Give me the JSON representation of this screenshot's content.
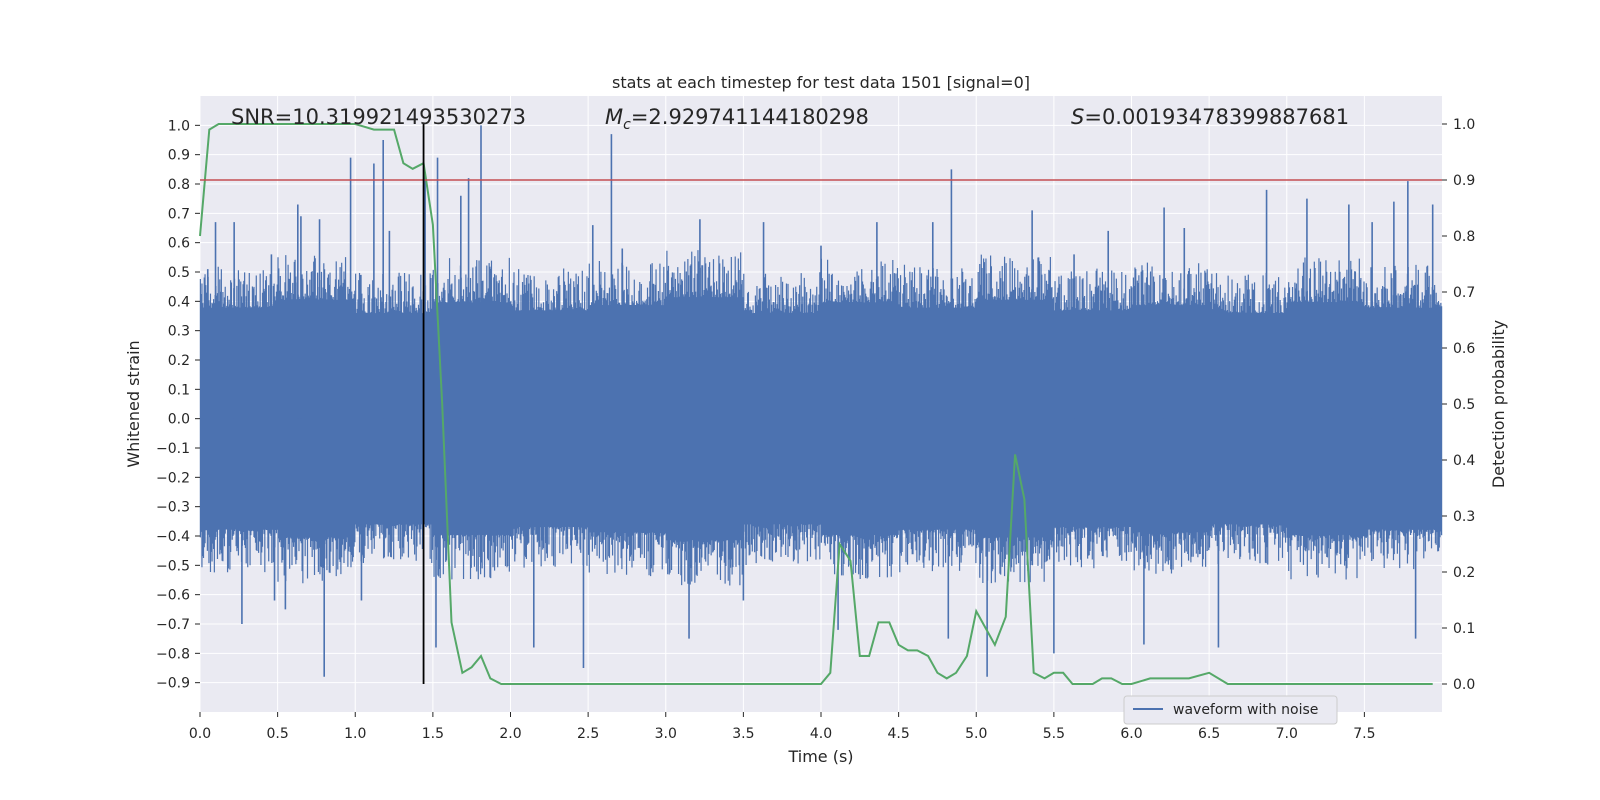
{
  "chart_data": {
    "type": "line",
    "title": "stats at each timestep for test data 1501 [signal=0]",
    "xlabel": "Time (s)",
    "ylabel_left": "Whitened strain",
    "ylabel_right": "Detection probability",
    "xlim": [
      0,
      8
    ],
    "ylim_left": [
      -1.0,
      1.1
    ],
    "ylim_right": [
      -0.05,
      1.05
    ],
    "x_ticks": [
      0.0,
      0.5,
      1.0,
      1.5,
      2.0,
      2.5,
      3.0,
      3.5,
      4.0,
      4.5,
      5.0,
      5.5,
      6.0,
      6.5,
      7.0,
      7.5
    ],
    "x_tick_labels": [
      "0.0",
      "0.5",
      "1.0",
      "1.5",
      "2.0",
      "2.5",
      "3.0",
      "3.5",
      "4.0",
      "4.5",
      "5.0",
      "5.5",
      "6.0",
      "6.5",
      "7.0",
      "7.5"
    ],
    "y_left_ticks": [
      1.0,
      0.9,
      0.8,
      0.7,
      0.6,
      0.5,
      0.4,
      0.3,
      0.2,
      0.1,
      0.0,
      -0.1,
      -0.2,
      -0.3,
      -0.4,
      -0.5,
      -0.6,
      -0.7,
      -0.8,
      -0.9
    ],
    "y_left_tick_labels": [
      "1.0",
      "0.9",
      "0.8",
      "0.7",
      "0.6",
      "0.5",
      "0.4",
      "0.3",
      "0.2",
      "0.1",
      "0.0",
      "−0.1",
      "−0.2",
      "−0.3",
      "−0.4",
      "−0.5",
      "−0.6",
      "−0.7",
      "−0.8",
      "−0.9"
    ],
    "y_right_ticks": [
      1.0,
      0.9,
      0.8,
      0.7,
      0.6,
      0.5,
      0.4,
      0.3,
      0.2,
      0.1,
      0.0
    ],
    "y_right_tick_labels": [
      "1.0",
      "0.9",
      "0.8",
      "0.7",
      "0.6",
      "0.5",
      "0.4",
      "0.3",
      "0.2",
      "0.1",
      "0.0"
    ],
    "grid": true,
    "annotations": {
      "snr": "SNR=10.319921493530273",
      "mc_symbol": "M",
      "mc_subscript": "c",
      "mc_value": "=2.929741144180298",
      "s_symbol": "S",
      "s_value": "=0.00193478399887681"
    },
    "threshold_right": 0.9,
    "vertical_line_x": 1.44,
    "legend": {
      "placement": "lower-right",
      "entries": [
        "waveform with noise"
      ]
    },
    "waveform": {
      "name": "waveform with noise",
      "samples": 1600,
      "band_upper": [
        0.42,
        0.45,
        0.4,
        0.44,
        0.41,
        0.43,
        0.46,
        0.4,
        0.44,
        0.42,
        0.45,
        0.41,
        0.43,
        0.4,
        0.44,
        0.42
      ],
      "band_lower": [
        -0.42,
        -0.45,
        -0.4,
        -0.44,
        -0.41,
        -0.43,
        -0.46,
        -0.4,
        -0.44,
        -0.42,
        -0.45,
        -0.41,
        -0.43,
        -0.4,
        -0.44,
        -0.42
      ],
      "spikes": [
        {
          "x": 0.05,
          "y": 0.51
        },
        {
          "x": 0.1,
          "y": 0.67
        },
        {
          "x": 0.22,
          "y": 0.67
        },
        {
          "x": 0.27,
          "y": -0.7
        },
        {
          "x": 0.46,
          "y": 0.56
        },
        {
          "x": 0.48,
          "y": -0.62
        },
        {
          "x": 0.55,
          "y": -0.65
        },
        {
          "x": 0.63,
          "y": 0.73
        },
        {
          "x": 0.65,
          "y": 0.69
        },
        {
          "x": 0.77,
          "y": 0.68
        },
        {
          "x": 0.8,
          "y": -0.88
        },
        {
          "x": 0.97,
          "y": 0.89
        },
        {
          "x": 1.04,
          "y": -0.62
        },
        {
          "x": 1.12,
          "y": 0.87
        },
        {
          "x": 1.18,
          "y": 0.95
        },
        {
          "x": 1.22,
          "y": 0.64
        },
        {
          "x": 1.45,
          "y": 0.84
        },
        {
          "x": 1.52,
          "y": -0.78
        },
        {
          "x": 1.53,
          "y": 0.89
        },
        {
          "x": 1.68,
          "y": 0.76
        },
        {
          "x": 1.73,
          "y": 0.82
        },
        {
          "x": 1.81,
          "y": 1.0
        },
        {
          "x": 2.15,
          "y": -0.78
        },
        {
          "x": 2.47,
          "y": -0.85
        },
        {
          "x": 2.53,
          "y": 0.66
        },
        {
          "x": 2.65,
          "y": 0.97
        },
        {
          "x": 2.72,
          "y": 0.58
        },
        {
          "x": 3.15,
          "y": -0.75
        },
        {
          "x": 3.22,
          "y": 0.68
        },
        {
          "x": 3.5,
          "y": -0.62
        },
        {
          "x": 3.63,
          "y": 0.67
        },
        {
          "x": 4.0,
          "y": 0.59
        },
        {
          "x": 4.11,
          "y": -0.72
        },
        {
          "x": 4.36,
          "y": 0.67
        },
        {
          "x": 4.72,
          "y": 0.67
        },
        {
          "x": 4.82,
          "y": -0.75
        },
        {
          "x": 4.84,
          "y": 0.85
        },
        {
          "x": 5.07,
          "y": -0.88
        },
        {
          "x": 5.36,
          "y": 0.71
        },
        {
          "x": 5.5,
          "y": -0.8
        },
        {
          "x": 5.63,
          "y": 0.56
        },
        {
          "x": 5.85,
          "y": 0.64
        },
        {
          "x": 6.08,
          "y": -0.77
        },
        {
          "x": 6.21,
          "y": 0.72
        },
        {
          "x": 6.34,
          "y": 0.65
        },
        {
          "x": 6.56,
          "y": -0.78
        },
        {
          "x": 6.87,
          "y": 0.78
        },
        {
          "x": 7.13,
          "y": 0.75
        },
        {
          "x": 7.4,
          "y": 0.73
        },
        {
          "x": 7.55,
          "y": 0.67
        },
        {
          "x": 7.69,
          "y": 0.74
        },
        {
          "x": 7.78,
          "y": 0.81
        },
        {
          "x": 7.83,
          "y": -0.75
        },
        {
          "x": 7.94,
          "y": 0.73
        }
      ]
    },
    "probability": {
      "x": [
        0.0,
        0.06,
        0.12,
        0.25,
        0.5,
        0.75,
        1.0,
        1.12,
        1.25,
        1.31,
        1.37,
        1.44,
        1.5,
        1.56,
        1.62,
        1.69,
        1.75,
        1.81,
        1.87,
        1.94,
        2.06,
        2.25,
        2.5,
        2.75,
        3.0,
        3.25,
        3.5,
        3.75,
        4.0,
        4.06,
        4.12,
        4.19,
        4.25,
        4.31,
        4.37,
        4.44,
        4.5,
        4.56,
        4.62,
        4.69,
        4.75,
        4.81,
        4.87,
        4.94,
        5.0,
        5.06,
        5.12,
        5.19,
        5.25,
        5.31,
        5.37,
        5.44,
        5.5,
        5.56,
        5.62,
        5.69,
        5.75,
        5.81,
        5.87,
        5.94,
        6.0,
        6.12,
        6.25,
        6.37,
        6.5,
        6.62,
        6.75,
        6.94,
        7.12,
        7.5,
        7.94
      ],
      "y": [
        0.8,
        0.99,
        1.0,
        1.0,
        1.0,
        1.0,
        1.0,
        0.99,
        0.99,
        0.93,
        0.92,
        0.93,
        0.82,
        0.5,
        0.11,
        0.02,
        0.03,
        0.05,
        0.01,
        0.0,
        0.0,
        0.0,
        0.0,
        0.0,
        0.0,
        0.0,
        0.0,
        0.0,
        0.0,
        0.02,
        0.25,
        0.22,
        0.05,
        0.05,
        0.11,
        0.11,
        0.07,
        0.06,
        0.06,
        0.05,
        0.02,
        0.01,
        0.02,
        0.05,
        0.13,
        0.1,
        0.07,
        0.12,
        0.41,
        0.33,
        0.02,
        0.01,
        0.02,
        0.02,
        0.0,
        0.0,
        0.0,
        0.01,
        0.01,
        0.0,
        0.0,
        0.01,
        0.01,
        0.01,
        0.02,
        0.0,
        0.0,
        0.0,
        0.0,
        0.0,
        0.0
      ]
    },
    "colors": {
      "plot_background": "#eaeaf2",
      "grid": "#ffffff",
      "waveform": "#4c72b0",
      "probability": "#55a868",
      "threshold": "#c44e52",
      "vertical_line": "#000000",
      "text": "#262626"
    }
  }
}
